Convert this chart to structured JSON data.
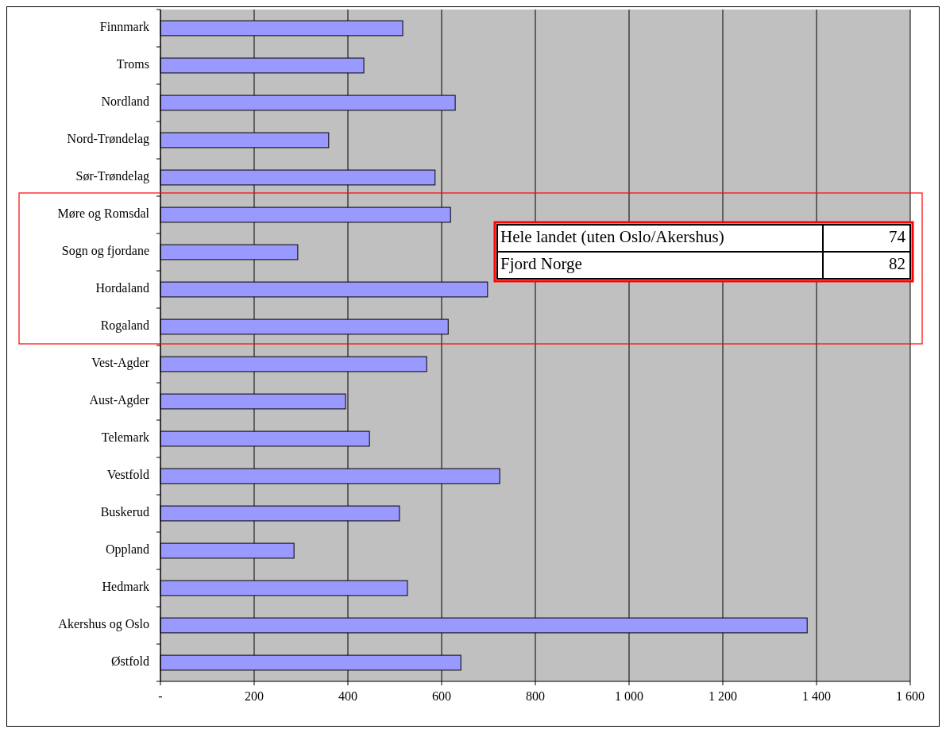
{
  "chart_data": {
    "type": "bar",
    "orientation": "horizontal",
    "categories": [
      "Finnmark",
      "Troms",
      "Nordland",
      "Nord-Trøndelag",
      "Sør-Trøndelag",
      "Møre og Romsdal",
      "Sogn og fjordane",
      "Hordaland",
      "Rogaland",
      "Vest-Agder",
      "Aust-Agder",
      "Telemark",
      "Vestfold",
      "Buskerud",
      "Oppland",
      "Hedmark",
      "Akershus og Oslo",
      "Østfold"
    ],
    "values": [
      517,
      434,
      629,
      359,
      586,
      619,
      293,
      698,
      614,
      568,
      395,
      446,
      724,
      510,
      285,
      527,
      1380,
      641
    ],
    "color": "#9999ff",
    "xlim": [
      0,
      1600
    ],
    "xticks": [
      {
        "value": 0,
        "label": "-"
      },
      200,
      400,
      600,
      800,
      {
        "value": 1000,
        "label": "1 000"
      },
      {
        "value": 1200,
        "label": "1 200"
      },
      {
        "value": 1400,
        "label": "1 400"
      },
      {
        "value": 1600,
        "label": "1 600"
      }
    ],
    "grid": "x",
    "annotations": [
      "Hele landet (uten Oslo/Akershus)",
      "74",
      "Fjord Norge",
      "82"
    ]
  }
}
